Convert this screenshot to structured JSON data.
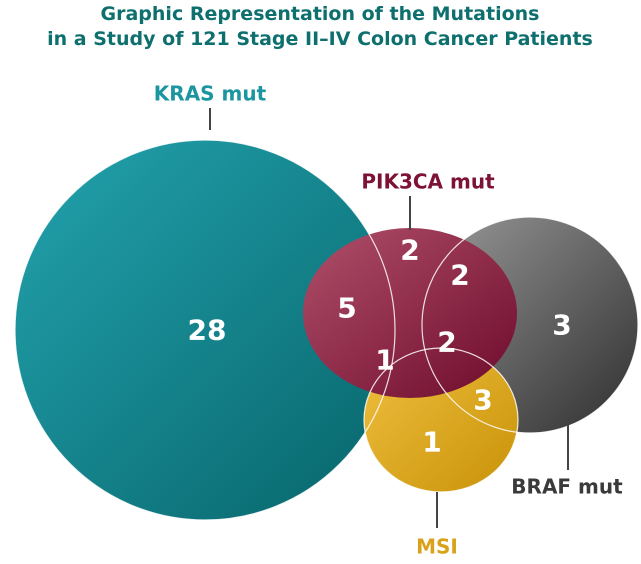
{
  "header": {
    "title_lines": [
      "Graphic Representation of the Mutations",
      "in a Study of 121 Stage II–IV Colon Cancer Patients"
    ]
  },
  "sets": [
    {
      "label": "KRAS mut"
    },
    {
      "label": "PIK3CA mut"
    },
    {
      "label": "BRAF mut"
    },
    {
      "label": "MSI"
    }
  ],
  "regions": [
    {
      "count": 28
    },
    {
      "count": 5
    },
    {
      "count": 2
    },
    {
      "count": 2
    },
    {
      "count": 2
    },
    {
      "count": 1
    },
    {
      "count": 3
    },
    {
      "count": 1
    },
    {
      "count": 3
    }
  ]
}
